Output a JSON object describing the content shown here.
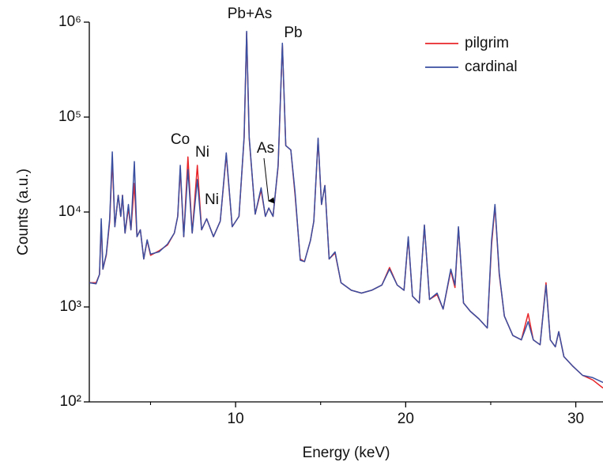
{
  "chart_data": {
    "type": "line",
    "x_label": "Energy (keV)",
    "y_label": "Counts (a.u.)",
    "log_y": true,
    "legend": "upper right",
    "xlim": [
      1.4,
      31.6
    ],
    "xticks": [
      10,
      20,
      30
    ],
    "xminorticks": [
      5,
      15,
      25
    ],
    "ylim": [
      100,
      1000000
    ],
    "yticks": [
      {
        "value": 100,
        "label": "10²"
      },
      {
        "value": 1000,
        "label": "10³"
      },
      {
        "value": 10000,
        "label": "10⁴"
      },
      {
        "value": 100000,
        "label": "10⁵"
      },
      {
        "value": 1000000,
        "label": "10⁶"
      }
    ],
    "annotations": [
      "Co",
      "Ni",
      "Ni",
      "Pb+As",
      "Pb",
      "As"
    ],
    "x": [
      1.4,
      1.8,
      2.0,
      2.1,
      2.2,
      2.4,
      2.6,
      2.75,
      2.9,
      3.1,
      3.25,
      3.35,
      3.5,
      3.7,
      3.85,
      4.05,
      4.2,
      4.4,
      4.6,
      4.8,
      5.0,
      5.5,
      6.0,
      6.4,
      6.6,
      6.75,
      6.95,
      7.2,
      7.45,
      7.75,
      8.0,
      8.3,
      8.7,
      9.1,
      9.45,
      9.8,
      10.2,
      10.5,
      10.65,
      10.8,
      11.15,
      11.5,
      11.75,
      11.95,
      12.2,
      12.5,
      12.75,
      12.95,
      13.25,
      13.5,
      13.8,
      14.05,
      14.4,
      14.6,
      14.85,
      15.05,
      15.25,
      15.5,
      15.85,
      16.2,
      16.8,
      17.4,
      18.0,
      18.6,
      19.05,
      19.5,
      19.9,
      20.15,
      20.4,
      20.8,
      21.1,
      21.4,
      21.85,
      22.2,
      22.65,
      22.9,
      23.1,
      23.4,
      23.8,
      24.3,
      24.8,
      25.05,
      25.25,
      25.5,
      25.8,
      26.3,
      26.8,
      27.2,
      27.5,
      27.9,
      28.25,
      28.5,
      28.8,
      29.0,
      29.3,
      29.8,
      30.4,
      31.0,
      31.6
    ],
    "series": [
      {
        "name": "pilgrim",
        "color": "#e8262a",
        "values": [
          1800,
          1800,
          2200,
          7500,
          2500,
          3500,
          8000,
          36000,
          7000,
          15000,
          9000,
          15000,
          6000,
          11000,
          6500,
          20000,
          5500,
          6500,
          3200,
          5000,
          3500,
          3900,
          4500,
          6000,
          9000,
          28000,
          5500,
          38000,
          6000,
          31000,
          6500,
          8500,
          5500,
          8000,
          40000,
          7000,
          9000,
          60000,
          780000,
          60000,
          9500,
          17000,
          9000,
          11000,
          9000,
          30000,
          580000,
          50000,
          45000,
          15000,
          3200,
          3000,
          5000,
          8000,
          58000,
          12000,
          19000,
          3200,
          3700,
          1800,
          1500,
          1400,
          1500,
          1700,
          2600,
          1700,
          1500,
          5300,
          1300,
          1100,
          7200,
          1200,
          1350,
          950,
          2400,
          1600,
          6800,
          1100,
          900,
          750,
          600,
          4500,
          11500,
          2200,
          800,
          500,
          450,
          850,
          450,
          400,
          1800,
          450,
          380,
          550,
          300,
          240,
          190,
          170,
          140
        ]
      },
      {
        "name": "cardinal",
        "color": "#3a4fa0",
        "values": [
          1800,
          1750,
          2200,
          8500,
          2500,
          3600,
          8500,
          43000,
          7000,
          15000,
          9000,
          15000,
          6000,
          12000,
          6500,
          34000,
          5500,
          6500,
          3200,
          5100,
          3600,
          3800,
          4600,
          6000,
          9000,
          31000,
          5500,
          28000,
          6000,
          22000,
          6500,
          8500,
          5500,
          8000,
          42000,
          7000,
          9000,
          62000,
          800000,
          62000,
          9500,
          18000,
          9000,
          11000,
          9000,
          31000,
          600000,
          50000,
          45000,
          16000,
          3100,
          3000,
          5000,
          8000,
          60000,
          12000,
          19000,
          3200,
          3800,
          1800,
          1500,
          1400,
          1500,
          1700,
          2500,
          1700,
          1500,
          5500,
          1300,
          1100,
          7300,
          1200,
          1400,
          950,
          2500,
          1700,
          7000,
          1100,
          900,
          750,
          600,
          5000,
          12000,
          2300,
          800,
          500,
          450,
          700,
          450,
          400,
          1700,
          450,
          380,
          550,
          300,
          240,
          190,
          180,
          160
        ]
      }
    ]
  }
}
